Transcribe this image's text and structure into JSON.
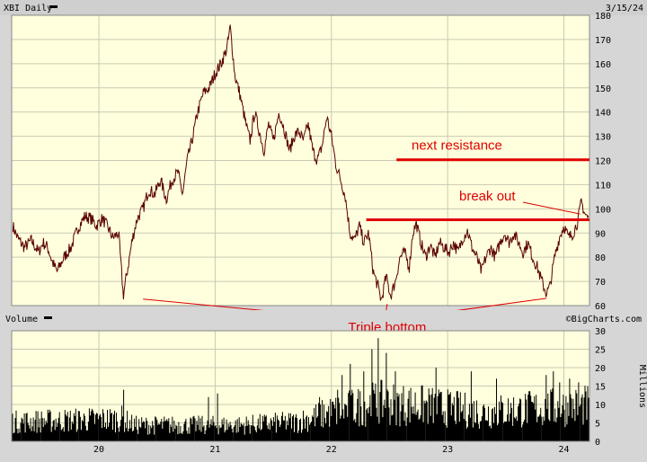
{
  "header": {
    "symbol_label": "XBI Daily",
    "date": "3/15/24",
    "watermark": "©BigCharts.com"
  },
  "chart_data": [
    {
      "type": "line",
      "name": "price",
      "ylim": [
        60,
        180
      ],
      "y_ticks": [
        60,
        70,
        80,
        90,
        100,
        110,
        120,
        130,
        140,
        150,
        160,
        170,
        180
      ],
      "x_ticks": [
        "20",
        "21",
        "22",
        "23",
        "24"
      ],
      "xlim": [
        2019.25,
        2024.22
      ],
      "background": "#ffffdd",
      "grid": true,
      "line_color": "#7a0000",
      "anchors": [
        [
          2019.26,
          93
        ],
        [
          2019.3,
          88
        ],
        [
          2019.36,
          84
        ],
        [
          2019.42,
          87
        ],
        [
          2019.48,
          82
        ],
        [
          2019.52,
          86
        ],
        [
          2019.56,
          84
        ],
        [
          2019.6,
          78
        ],
        [
          2019.64,
          74
        ],
        [
          2019.7,
          80
        ],
        [
          2019.76,
          84
        ],
        [
          2019.82,
          92
        ],
        [
          2019.88,
          97
        ],
        [
          2019.93,
          96
        ],
        [
          2019.98,
          93
        ],
        [
          2020.03,
          96
        ],
        [
          2020.08,
          92
        ],
        [
          2020.12,
          88
        ],
        [
          2020.17,
          90
        ],
        [
          2020.21,
          64
        ],
        [
          2020.25,
          76
        ],
        [
          2020.29,
          88
        ],
        [
          2020.33,
          96
        ],
        [
          2020.38,
          100
        ],
        [
          2020.43,
          108
        ],
        [
          2020.48,
          106
        ],
        [
          2020.53,
          112
        ],
        [
          2020.58,
          104
        ],
        [
          2020.63,
          112
        ],
        [
          2020.68,
          115
        ],
        [
          2020.72,
          106
        ],
        [
          2020.76,
          120
        ],
        [
          2020.8,
          128
        ],
        [
          2020.85,
          140
        ],
        [
          2020.9,
          148
        ],
        [
          2020.95,
          150
        ],
        [
          2021.0,
          156
        ],
        [
          2021.05,
          160
        ],
        [
          2021.1,
          166
        ],
        [
          2021.13,
          175
        ],
        [
          2021.17,
          155
        ],
        [
          2021.21,
          148
        ],
        [
          2021.26,
          136
        ],
        [
          2021.3,
          128
        ],
        [
          2021.34,
          140
        ],
        [
          2021.38,
          132
        ],
        [
          2021.42,
          124
        ],
        [
          2021.46,
          135
        ],
        [
          2021.5,
          128
        ],
        [
          2021.55,
          140
        ],
        [
          2021.6,
          132
        ],
        [
          2021.64,
          124
        ],
        [
          2021.68,
          130
        ],
        [
          2021.72,
          132
        ],
        [
          2021.76,
          128
        ],
        [
          2021.8,
          135
        ],
        [
          2021.84,
          124
        ],
        [
          2021.88,
          120
        ],
        [
          2021.92,
          126
        ],
        [
          2021.96,
          138
        ],
        [
          2022.0,
          130
        ],
        [
          2022.04,
          118
        ],
        [
          2022.08,
          112
        ],
        [
          2022.12,
          105
        ],
        [
          2022.16,
          90
        ],
        [
          2022.2,
          87
        ],
        [
          2022.24,
          93
        ],
        [
          2022.28,
          86
        ],
        [
          2022.32,
          90
        ],
        [
          2022.36,
          74
        ],
        [
          2022.4,
          68
        ],
        [
          2022.43,
          62
        ],
        [
          2022.47,
          72
        ],
        [
          2022.51,
          64
        ],
        [
          2022.55,
          70
        ],
        [
          2022.59,
          80
        ],
        [
          2022.63,
          82
        ],
        [
          2022.67,
          76
        ],
        [
          2022.7,
          90
        ],
        [
          2022.73,
          94
        ],
        [
          2022.77,
          86
        ],
        [
          2022.81,
          80
        ],
        [
          2022.85,
          85
        ],
        [
          2022.89,
          80
        ],
        [
          2022.93,
          86
        ],
        [
          2022.97,
          84
        ],
        [
          2023.01,
          82
        ],
        [
          2023.05,
          86
        ],
        [
          2023.09,
          82
        ],
        [
          2023.13,
          88
        ],
        [
          2023.17,
          91
        ],
        [
          2023.21,
          84
        ],
        [
          2023.25,
          80
        ],
        [
          2023.29,
          74
        ],
        [
          2023.33,
          80
        ],
        [
          2023.37,
          84
        ],
        [
          2023.41,
          80
        ],
        [
          2023.45,
          86
        ],
        [
          2023.49,
          90
        ],
        [
          2023.53,
          86
        ],
        [
          2023.57,
          90
        ],
        [
          2023.61,
          86
        ],
        [
          2023.65,
          82
        ],
        [
          2023.69,
          86
        ],
        [
          2023.73,
          80
        ],
        [
          2023.77,
          76
        ],
        [
          2023.81,
          70
        ],
        [
          2023.85,
          65
        ],
        [
          2023.88,
          68
        ],
        [
          2023.92,
          80
        ],
        [
          2023.96,
          88
        ],
        [
          2024.0,
          93
        ],
        [
          2024.04,
          88
        ],
        [
          2024.08,
          90
        ],
        [
          2024.12,
          95
        ],
        [
          2024.15,
          103
        ],
        [
          2024.18,
          98
        ],
        [
          2024.21,
          96
        ]
      ],
      "annotations": {
        "next_resistance": {
          "label": "next resistance",
          "price": 120.3,
          "x_start": 2022.56,
          "x_end": 2024.22
        },
        "resistance_line": {
          "price": 95.5,
          "x_start": 2022.3,
          "x_end": 2024.22
        },
        "break_out": {
          "label": "break out",
          "x": 2024.14,
          "price": 96
        },
        "triple_bottom": {
          "label": "Triple bottom",
          "targets": [
            [
              2020.38,
              64.2
            ],
            [
              2022.48,
              62.2
            ],
            [
              2023.85,
              64.5
            ]
          ],
          "label_x": 2022.48
        }
      },
      "annotation_color": "#e00000"
    },
    {
      "type": "bar",
      "name": "volume",
      "title": "Volume",
      "unit_label": "Millions",
      "ylim": [
        0,
        30
      ],
      "y_ticks": [
        0,
        5,
        10,
        15,
        20,
        25,
        30
      ],
      "x_ticks": [
        "20",
        "21",
        "22",
        "23",
        "24"
      ],
      "bar_color": "#000000",
      "baseline_profile": [
        [
          2019.25,
          6
        ],
        [
          2020.2,
          7
        ],
        [
          2020.3,
          5
        ],
        [
          2021.2,
          5
        ],
        [
          2021.7,
          6
        ],
        [
          2022.0,
          9
        ],
        [
          2022.4,
          12
        ],
        [
          2022.8,
          11
        ],
        [
          2023.3,
          9
        ],
        [
          2023.7,
          10
        ],
        [
          2024.22,
          11
        ]
      ],
      "spikes": [
        [
          2020.21,
          14
        ],
        [
          2020.94,
          12
        ],
        [
          2021.02,
          13
        ],
        [
          2021.9,
          12
        ],
        [
          2022.05,
          14
        ],
        [
          2022.09,
          18
        ],
        [
          2022.16,
          21
        ],
        [
          2022.28,
          19
        ],
        [
          2022.35,
          25
        ],
        [
          2022.4,
          28
        ],
        [
          2022.47,
          24
        ],
        [
          2022.55,
          19
        ],
        [
          2022.9,
          20
        ],
        [
          2023.2,
          19
        ],
        [
          2023.42,
          17
        ],
        [
          2023.85,
          18
        ],
        [
          2023.91,
          19
        ],
        [
          2023.96,
          16
        ],
        [
          2024.05,
          17
        ],
        [
          2024.13,
          16
        ]
      ]
    }
  ]
}
